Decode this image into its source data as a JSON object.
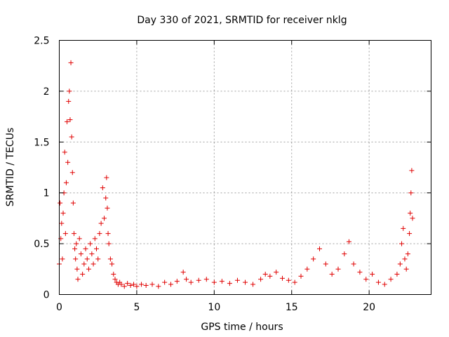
{
  "chart_data": {
    "type": "scatter",
    "title": "Day 330 of 2021, SRMTID for receiver nklg",
    "xlabel": "GPS time / hours",
    "ylabel": "SRMTID / TECUs",
    "xlim": [
      0,
      24
    ],
    "ylim": [
      0,
      2.5
    ],
    "xticks": [
      0,
      5,
      10,
      15,
      20
    ],
    "xtick_labels": [
      "0",
      "5",
      "10",
      "15",
      "20"
    ],
    "yticks": [
      0,
      0.5,
      1,
      1.5,
      2,
      2.5
    ],
    "ytick_labels": [
      "0",
      "0.5",
      "1",
      "1.5",
      "2",
      "2.5"
    ],
    "grid": true,
    "marker": "+",
    "marker_color": "#e00000",
    "series": [
      {
        "name": "SRMTID",
        "x": [
          0.0,
          0.05,
          0.1,
          0.15,
          0.2,
          0.25,
          0.3,
          0.35,
          0.4,
          0.45,
          0.5,
          0.55,
          0.6,
          0.65,
          0.7,
          0.75,
          0.8,
          0.85,
          0.9,
          0.95,
          1.0,
          1.05,
          1.1,
          1.15,
          1.2,
          1.3,
          1.4,
          1.5,
          1.6,
          1.7,
          1.8,
          1.9,
          2.0,
          2.1,
          2.2,
          2.3,
          2.4,
          2.5,
          2.6,
          2.7,
          2.8,
          2.9,
          3.0,
          3.05,
          3.1,
          3.15,
          3.2,
          3.3,
          3.4,
          3.5,
          3.6,
          3.7,
          3.8,
          3.9,
          4.0,
          4.2,
          4.4,
          4.6,
          4.8,
          5.0,
          5.3,
          5.6,
          6.0,
          6.4,
          6.8,
          7.2,
          7.6,
          8.0,
          8.2,
          8.5,
          9.0,
          9.5,
          10.0,
          10.5,
          11.0,
          11.5,
          12.0,
          12.5,
          13.0,
          13.3,
          13.6,
          14.0,
          14.4,
          14.8,
          15.2,
          15.6,
          16.0,
          16.4,
          16.8,
          17.2,
          17.6,
          18.0,
          18.4,
          18.7,
          19.0,
          19.4,
          19.8,
          20.2,
          20.6,
          21.0,
          21.4,
          21.8,
          22.0,
          22.1,
          22.2,
          22.3,
          22.4,
          22.5,
          22.6,
          22.65,
          22.7,
          22.75,
          22.8
        ],
        "y": [
          0.3,
          0.9,
          0.55,
          0.7,
          0.35,
          0.8,
          1.0,
          1.4,
          0.6,
          1.1,
          1.7,
          1.3,
          1.9,
          2.0,
          1.72,
          2.28,
          1.55,
          1.2,
          0.9,
          0.6,
          0.45,
          0.35,
          0.5,
          0.25,
          0.15,
          0.55,
          0.4,
          0.2,
          0.3,
          0.45,
          0.35,
          0.25,
          0.5,
          0.4,
          0.3,
          0.55,
          0.45,
          0.35,
          0.6,
          0.7,
          1.05,
          0.75,
          0.95,
          1.15,
          0.85,
          0.6,
          0.5,
          0.35,
          0.3,
          0.2,
          0.15,
          0.12,
          0.1,
          0.12,
          0.1,
          0.08,
          0.11,
          0.09,
          0.1,
          0.08,
          0.1,
          0.09,
          0.1,
          0.08,
          0.12,
          0.1,
          0.13,
          0.22,
          0.15,
          0.12,
          0.14,
          0.15,
          0.12,
          0.13,
          0.11,
          0.14,
          0.12,
          0.1,
          0.15,
          0.2,
          0.18,
          0.22,
          0.16,
          0.14,
          0.12,
          0.18,
          0.25,
          0.35,
          0.45,
          0.3,
          0.2,
          0.25,
          0.4,
          0.52,
          0.3,
          0.22,
          0.15,
          0.2,
          0.12,
          0.1,
          0.15,
          0.2,
          0.3,
          0.5,
          0.65,
          0.35,
          0.25,
          0.4,
          0.6,
          0.8,
          1.0,
          1.22,
          0.75
        ]
      }
    ]
  }
}
